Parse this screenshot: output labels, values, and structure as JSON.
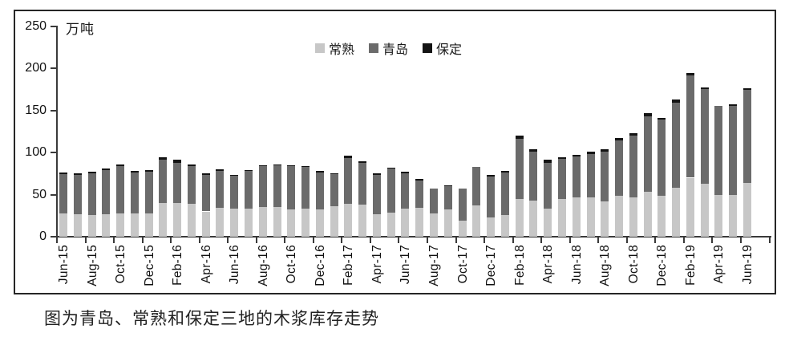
{
  "figure": {
    "unit_label": "万吨",
    "caption": "图为青岛、常熟和保定三地的木浆库存走势"
  },
  "axes": {
    "y_ticks": [
      0,
      50,
      100,
      150,
      200,
      250
    ],
    "x_tick_labels": [
      "Jun-15",
      "Aug-15",
      "Oct-15",
      "Dec-15",
      "Feb-16",
      "Apr-16",
      "Jun-16",
      "Aug-16",
      "Oct-16",
      "Dec-16",
      "Feb-17",
      "Apr-17",
      "Jun-17",
      "Aug-17",
      "Oct-17",
      "Dec-17",
      "Feb-18",
      "Apr-18",
      "Jun-18",
      "Aug-18",
      "Oct-18",
      "Dec-18",
      "Feb-19",
      "Apr-19",
      "Jun-19"
    ]
  },
  "chart_data": {
    "type": "bar",
    "stacked": true,
    "title": "",
    "ylabel": "万吨",
    "ylim": [
      0,
      250
    ],
    "grid": false,
    "legend_position": "top-center",
    "categories": [
      "Jun-15",
      "Jul-15",
      "Aug-15",
      "Sep-15",
      "Oct-15",
      "Nov-15",
      "Dec-15",
      "Jan-16",
      "Feb-16",
      "Mar-16",
      "Apr-16",
      "May-16",
      "Jun-16",
      "Jul-16",
      "Aug-16",
      "Sep-16",
      "Oct-16",
      "Nov-16",
      "Dec-16",
      "Jan-17",
      "Feb-17",
      "Mar-17",
      "Apr-17",
      "May-17",
      "Jun-17",
      "Jul-17",
      "Aug-17",
      "Sep-17",
      "Oct-17",
      "Nov-17",
      "Dec-17",
      "Jan-18",
      "Feb-18",
      "Mar-18",
      "Apr-18",
      "May-18",
      "Jun-18",
      "Jul-18",
      "Aug-18",
      "Sep-18",
      "Oct-18",
      "Nov-18",
      "Dec-18",
      "Jan-19",
      "Feb-19",
      "Mar-19",
      "Apr-19",
      "May-19",
      "Jun-19"
    ],
    "series": [
      {
        "name": "常熟",
        "color": "#c7c7c7",
        "values": [
          28,
          27,
          26,
          27,
          28,
          28,
          28,
          40,
          40,
          39,
          30,
          34,
          33,
          33,
          35,
          35,
          32,
          33,
          32,
          36,
          39,
          38,
          27,
          29,
          33,
          34,
          28,
          32,
          19,
          37,
          23,
          26,
          45,
          43,
          33,
          45,
          47,
          47,
          42,
          49,
          47,
          53,
          49,
          58,
          70,
          63,
          50,
          50,
          64
        ]
      },
      {
        "name": "青岛",
        "color": "#6b6b6b",
        "values": [
          46,
          46,
          49,
          52,
          56,
          48,
          49,
          51,
          48,
          45,
          43,
          44,
          39,
          45,
          49,
          50,
          52,
          50,
          44,
          38,
          54,
          50,
          46,
          52,
          42,
          33,
          29,
          28,
          38,
          46,
          48,
          50,
          71,
          58,
          55,
          47,
          48,
          51,
          59,
          65,
          73,
          90,
          90,
          101,
          121,
          112,
          105,
          105,
          110
        ]
      },
      {
        "name": "保定",
        "color": "#141414",
        "values": [
          2,
          2,
          2,
          2,
          2,
          2,
          2,
          3,
          3,
          2,
          2,
          2,
          1,
          1,
          1,
          1,
          1,
          1,
          2,
          1,
          3,
          2,
          2,
          1,
          2,
          2,
          0,
          1,
          0,
          0,
          2,
          2,
          4,
          3,
          3,
          2,
          2,
          3,
          3,
          3,
          3,
          4,
          2,
          4,
          3,
          2,
          0,
          2,
          2
        ]
      }
    ]
  }
}
